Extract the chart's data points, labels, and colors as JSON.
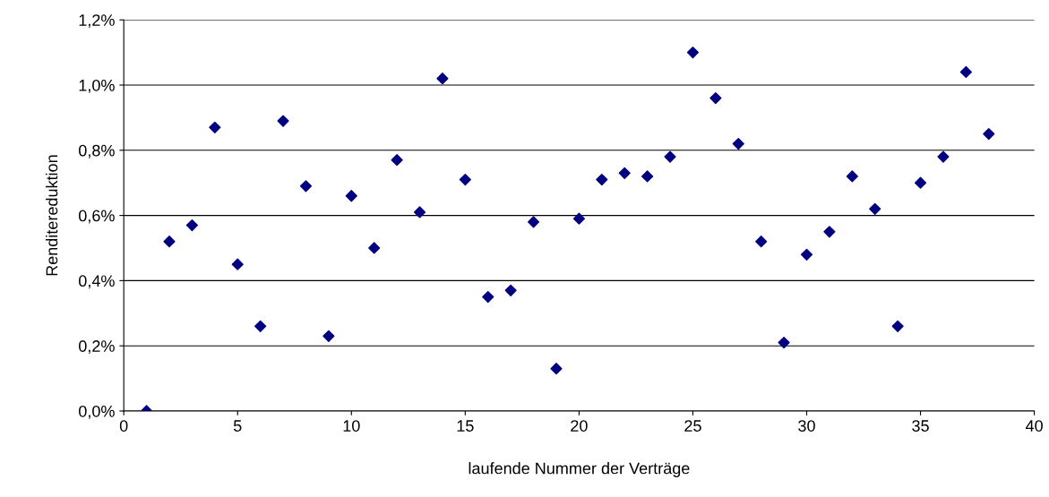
{
  "chart_data": {
    "type": "scatter",
    "xlabel": "laufende Nummer der Verträge",
    "ylabel": "Renditereduktion",
    "x": [
      1,
      2,
      3,
      4,
      5,
      6,
      7,
      8,
      9,
      10,
      11,
      12,
      13,
      14,
      15,
      16,
      17,
      18,
      19,
      20,
      21,
      22,
      23,
      24,
      25,
      26,
      27,
      28,
      29,
      30,
      31,
      32,
      33,
      34,
      35,
      36,
      37,
      38
    ],
    "series": [
      {
        "color": "#000080",
        "values": [
          0.0,
          0.52,
          0.57,
          0.87,
          0.45,
          0.26,
          0.89,
          0.69,
          0.23,
          0.66,
          0.5,
          0.77,
          0.61,
          1.02,
          0.71,
          0.35,
          0.37,
          0.58,
          0.13,
          0.59,
          0.71,
          0.73,
          0.72,
          0.78,
          1.1,
          0.96,
          0.82,
          0.52,
          0.21,
          0.48,
          0.55,
          0.72,
          0.62,
          0.26,
          0.7,
          0.78,
          1.04,
          0.85
        ]
      }
    ],
    "marker": "diamond",
    "grid": "y",
    "xlim": [
      0,
      40
    ],
    "xticks": [
      0,
      5,
      10,
      15,
      20,
      25,
      30,
      35,
      40
    ],
    "ylim": [
      0,
      1.2
    ],
    "yticks": [
      {
        "value": 0,
        "label": "0,0%"
      },
      {
        "value": 0.2,
        "label": "0,2%"
      },
      {
        "value": 0.4,
        "label": "0,4%"
      },
      {
        "value": 0.6,
        "label": "0,6%"
      },
      {
        "value": 0.8,
        "label": "0,8%"
      },
      {
        "value": 1.0,
        "label": "1,0%"
      },
      {
        "value": 1.2,
        "label": "1,2%"
      }
    ]
  }
}
